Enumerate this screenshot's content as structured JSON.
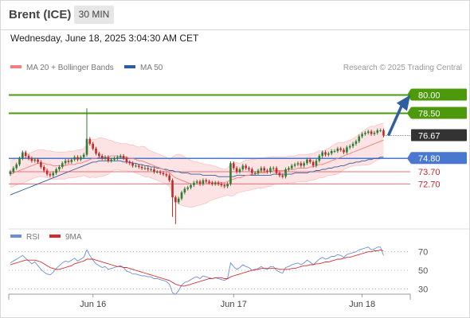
{
  "header": {
    "title": "Brent (ICE)",
    "timeframe": "30 MIN"
  },
  "datetime": "Wednesday, June 18, 2025 3:04:30 AM CET",
  "credit": "Research © 2025 Trading Central",
  "colors": {
    "bollinger": "#f08080",
    "band_fill": "#fde3e3",
    "ma50": "#2f5f9f",
    "resistance": "#4c9a0c",
    "support": "#4a78d0",
    "target": "#e8707a",
    "up": "#2e7d32",
    "down": "#c62828",
    "price_box": "#333333",
    "rsi": "#6a8fdc",
    "rsi_ma": "#d32f2f",
    "arrow": "#2f5f9f"
  },
  "chart_data": [
    {
      "type": "candlestick",
      "title": "Brent (ICE)",
      "timeframe": "30 MIN",
      "legend": [
        {
          "name": "MA 20 + Bollinger Bands",
          "color": "#f08080"
        },
        {
          "name": "MA 50",
          "color": "#2f5f9f"
        }
      ],
      "x_tick_labels": [
        {
          "label": "Jun 16",
          "index": 27
        },
        {
          "label": "Jun 17",
          "index": 73
        },
        {
          "label": "Jun 18",
          "index": 115
        }
      ],
      "ylim": [
        69.2,
        81.6
      ],
      "levels": [
        {
          "label": "80.00",
          "value": 80.0,
          "kind": "resistance"
        },
        {
          "label": "78.50",
          "value": 78.5,
          "kind": "resistance"
        },
        {
          "label": "76.67",
          "value": 76.67,
          "kind": "last_price"
        },
        {
          "label": "74.80",
          "value": 74.8,
          "kind": "pivot"
        },
        {
          "label": "73.70",
          "value": 73.7,
          "kind": "support"
        },
        {
          "label": "72.70",
          "value": 72.7,
          "kind": "support"
        }
      ],
      "target_arrow": {
        "from": 76.67,
        "to": 80.0
      },
      "close": [
        73.7,
        74.0,
        74.3,
        74.8,
        75.3,
        75.0,
        74.8,
        74.6,
        74.7,
        74.5,
        74.1,
        73.8,
        73.5,
        73.4,
        73.6,
        73.9,
        74.1,
        74.4,
        74.6,
        74.5,
        74.7,
        74.9,
        74.7,
        74.9,
        75.1,
        76.4,
        76.0,
        75.6,
        75.2,
        75.0,
        74.8,
        74.9,
        74.6,
        74.7,
        74.8,
        74.9,
        75.0,
        74.8,
        74.5,
        74.4,
        74.2,
        74.2,
        74.1,
        74.0,
        74.0,
        73.9,
        73.9,
        73.7,
        73.7,
        73.6,
        73.5,
        73.4,
        73.0,
        71.6,
        71.2,
        71.5,
        72.0,
        72.3,
        72.4,
        72.6,
        72.8,
        72.9,
        72.7,
        73.0,
        72.9,
        72.8,
        72.7,
        72.8,
        72.7,
        72.6,
        72.5,
        72.7,
        74.4,
        74.0,
        73.7,
        73.9,
        74.2,
        74.0,
        73.9,
        73.6,
        73.6,
        73.8,
        74.0,
        73.8,
        73.7,
        74.0,
        74.0,
        73.6,
        73.4,
        73.3,
        73.9,
        74.0,
        74.2,
        74.3,
        74.4,
        74.2,
        74.4,
        74.7,
        74.5,
        74.2,
        74.6,
        75.0,
        75.3,
        75.1,
        75.2,
        75.4,
        75.4,
        75.6,
        75.5,
        75.3,
        75.7,
        75.8,
        76.0,
        76.2,
        76.6,
        76.8,
        76.9,
        77.0,
        76.8,
        76.9,
        77.1,
        77.1,
        76.67
      ],
      "series": [
        {
          "name": "MA 20",
          "values": [
            73.5,
            73.6,
            73.7,
            73.8,
            73.9,
            74.0,
            74.1,
            74.2,
            74.3,
            74.4,
            74.4,
            74.4,
            74.3,
            74.3,
            74.2,
            74.2,
            74.2,
            74.2,
            74.2,
            74.3,
            74.3,
            74.3,
            74.4,
            74.4,
            74.5,
            74.6,
            74.7,
            74.8,
            74.8,
            74.9,
            74.9,
            74.9,
            74.9,
            75.0,
            75.0,
            75.0,
            74.9,
            74.9,
            74.9,
            74.8,
            74.8,
            74.7,
            74.6,
            74.6,
            74.5,
            74.4,
            74.3,
            74.2,
            74.1,
            74.0,
            73.9,
            73.8,
            73.6,
            73.4,
            73.2,
            73.1,
            73.0,
            72.9,
            72.8,
            72.7,
            72.7,
            72.7,
            72.7,
            72.7,
            72.7,
            72.8,
            72.8,
            72.8,
            72.8,
            72.8,
            72.8,
            72.9,
            73.0,
            73.1,
            73.2,
            73.2,
            73.3,
            73.4,
            73.4,
            73.5,
            73.5,
            73.6,
            73.6,
            73.6,
            73.7,
            73.7,
            73.8,
            73.8,
            73.8,
            73.8,
            73.8,
            73.9,
            73.9,
            73.9,
            74.0,
            74.0,
            74.0,
            74.0,
            74.1,
            74.1,
            74.2,
            74.3,
            74.3,
            74.4,
            74.5,
            74.6,
            74.7,
            74.8,
            74.9,
            75.0,
            75.1,
            75.2,
            75.3,
            75.4,
            75.5,
            75.6,
            75.7,
            75.8,
            75.9,
            76.0,
            76.1,
            76.2,
            76.3
          ]
        },
        {
          "name": "MA 50",
          "values": [
            71.8,
            71.9,
            72.0,
            72.1,
            72.2,
            72.3,
            72.4,
            72.5,
            72.6,
            72.7,
            72.8,
            72.9,
            73.0,
            73.1,
            73.2,
            73.3,
            73.4,
            73.5,
            73.6,
            73.7,
            73.8,
            73.9,
            74.0,
            74.1,
            74.2,
            74.3,
            74.4,
            74.5,
            74.5,
            74.6,
            74.6,
            74.6,
            74.6,
            74.6,
            74.6,
            74.6,
            74.6,
            74.5,
            74.5,
            74.5,
            74.4,
            74.4,
            74.3,
            74.3,
            74.2,
            74.2,
            74.1,
            74.1,
            74.0,
            74.0,
            73.9,
            73.9,
            73.8,
            73.8,
            73.7,
            73.7,
            73.6,
            73.6,
            73.6,
            73.5,
            73.5,
            73.5,
            73.5,
            73.4,
            73.4,
            73.4,
            73.4,
            73.4,
            73.3,
            73.3,
            73.3,
            73.3,
            73.3,
            73.3,
            73.4,
            73.4,
            73.4,
            73.4,
            73.4,
            73.4,
            73.4,
            73.4,
            73.4,
            73.4,
            73.4,
            73.4,
            73.5,
            73.5,
            73.5,
            73.5,
            73.5,
            73.5,
            73.5,
            73.6,
            73.6,
            73.6,
            73.6,
            73.6,
            73.7,
            73.7,
            73.8,
            73.8,
            73.9,
            73.9,
            74.0,
            74.0,
            74.1,
            74.1,
            74.2,
            74.2,
            74.3,
            74.4,
            74.4,
            74.5,
            74.5,
            74.6,
            74.6,
            74.7,
            74.7,
            74.8,
            74.8,
            74.9,
            74.9
          ]
        }
      ]
    },
    {
      "type": "line",
      "legend": [
        {
          "name": "RSI",
          "color": "#6a8fdc"
        },
        {
          "name": "9MA",
          "color": "#d32f2f"
        }
      ],
      "ylim": [
        20,
        80
      ],
      "y_ticks": [
        70,
        50,
        30
      ],
      "series": [
        {
          "name": "RSI",
          "values": [
            58,
            60,
            62,
            64,
            66,
            63,
            60,
            57,
            59,
            55,
            51,
            48,
            46,
            45,
            48,
            52,
            55,
            58,
            60,
            59,
            61,
            63,
            60,
            62,
            64,
            72,
            66,
            61,
            57,
            55,
            53,
            54,
            51,
            52,
            53,
            54,
            55,
            53,
            49,
            48,
            46,
            46,
            45,
            44,
            44,
            43,
            43,
            41,
            41,
            40,
            39,
            38,
            35,
            26,
            24,
            28,
            34,
            37,
            38,
            40,
            42,
            43,
            41,
            44,
            43,
            42,
            41,
            42,
            41,
            40,
            39,
            41,
            58,
            54,
            51,
            53,
            56,
            54,
            53,
            50,
            50,
            52,
            54,
            52,
            51,
            54,
            54,
            50,
            48,
            47,
            53,
            54,
            56,
            57,
            58,
            56,
            58,
            61,
            59,
            56,
            59,
            62,
            64,
            62,
            63,
            65,
            65,
            67,
            66,
            64,
            67,
            68,
            69,
            70,
            72,
            73,
            74,
            75,
            72,
            73,
            75,
            75,
            66
          ]
        },
        {
          "name": "9MA",
          "values": [
            56,
            57,
            58,
            59,
            60,
            61,
            61,
            61,
            61,
            60,
            59,
            57,
            55,
            53,
            52,
            51,
            51,
            52,
            53,
            54,
            55,
            57,
            58,
            59,
            60,
            62,
            62,
            62,
            61,
            60,
            59,
            58,
            57,
            56,
            55,
            54,
            54,
            53,
            53,
            52,
            51,
            50,
            49,
            48,
            47,
            46,
            45,
            44,
            43,
            42,
            41,
            40,
            39,
            37,
            35,
            34,
            33,
            33,
            34,
            35,
            36,
            37,
            38,
            39,
            40,
            41,
            41,
            42,
            42,
            42,
            41,
            41,
            43,
            44,
            45,
            46,
            47,
            48,
            49,
            50,
            51,
            51,
            52,
            52,
            52,
            52,
            52,
            52,
            51,
            51,
            51,
            51,
            52,
            52,
            53,
            54,
            55,
            55,
            56,
            56,
            57,
            57,
            58,
            59,
            59,
            60,
            61,
            62,
            62,
            63,
            64,
            64,
            65,
            66,
            67,
            68,
            69,
            70,
            70,
            71,
            71,
            72,
            71
          ]
        }
      ]
    }
  ]
}
